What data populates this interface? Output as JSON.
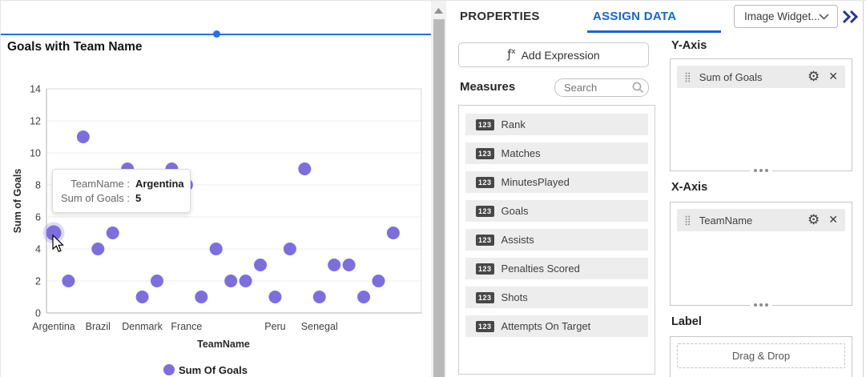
{
  "colors": {
    "accent_blue": "#1565d8",
    "selection_blue": "#2470e8",
    "collapse_chevron_blue": "#283593",
    "point_purple": "#7d6ee0"
  },
  "chart_data": {
    "type": "scatter",
    "title": "Goals with Team Name",
    "xlabel": "TeamName",
    "ylabel": "Sum of Goals",
    "ylim": [
      0,
      14
    ],
    "ytick_step": 2,
    "grid": "horizontal",
    "legend": "Sum Of Goals",
    "legend_position": "bottom",
    "point_color": "#7d6ee0",
    "values": [
      5,
      2,
      11,
      4,
      5,
      9,
      1,
      2,
      9,
      8,
      1,
      4,
      2,
      2,
      3,
      1,
      4,
      9,
      1,
      3,
      3,
      1,
      2,
      5
    ],
    "visible_x_labels": [
      {
        "label": "Argentina",
        "index": 0
      },
      {
        "label": "Brazil",
        "index": 3
      },
      {
        "label": "Denmark",
        "index": 6
      },
      {
        "label": "France",
        "index": 9
      },
      {
        "label": "Peru",
        "index": 15
      },
      {
        "label": "Senegal",
        "index": 18
      }
    ],
    "hovered_index": 0,
    "tooltip": {
      "rows": [
        {
          "label": "TeamName :",
          "value": "Argentina"
        },
        {
          "label": "Sum of Goals :",
          "value": "5"
        }
      ]
    }
  },
  "panel": {
    "tabs": [
      {
        "label": "PROPERTIES",
        "active": false
      },
      {
        "label": "ASSIGN DATA",
        "active": true
      }
    ],
    "widget_selector": {
      "value": "Image Widget...",
      "chevron_icon": "chevron-down"
    },
    "collapse_icon": "double-chevron-right",
    "add_expression": {
      "label": "Add Expression",
      "icon": "fx"
    },
    "measures": {
      "heading": "Measures",
      "search_placeholder": "Search",
      "search_icon": "magnifier",
      "items": [
        {
          "badge": "123",
          "label": "Rank"
        },
        {
          "badge": "123",
          "label": "Matches"
        },
        {
          "badge": "123",
          "label": "MinutesPlayed"
        },
        {
          "badge": "123",
          "label": "Goals"
        },
        {
          "badge": "123",
          "label": "Assists"
        },
        {
          "badge": "123",
          "label": "Penalties Scored"
        },
        {
          "badge": "123",
          "label": "Shots"
        },
        {
          "badge": "123",
          "label": "Attempts On Target"
        }
      ]
    },
    "y_axis": {
      "heading": "Y-Axis",
      "field": "Sum of Goals"
    },
    "x_axis": {
      "heading": "X-Axis",
      "field": "TeamName"
    },
    "label_section": {
      "heading": "Label",
      "dropzone_text": "Drag & Drop"
    }
  }
}
